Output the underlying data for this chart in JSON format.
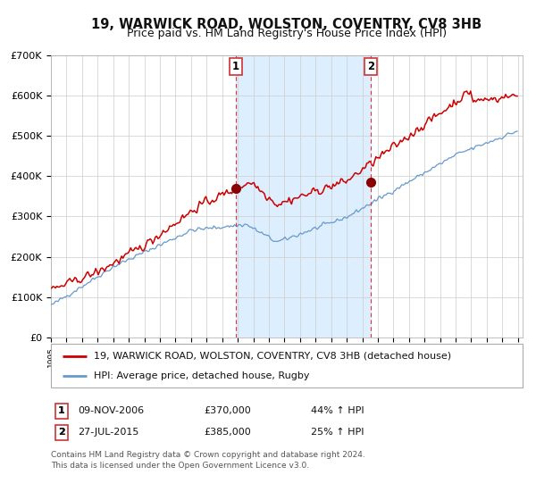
{
  "title": "19, WARWICK ROAD, WOLSTON, COVENTRY, CV8 3HB",
  "subtitle": "Price paid vs. HM Land Registry's House Price Index (HPI)",
  "legend_line1": "19, WARWICK ROAD, WOLSTON, COVENTRY, CV8 3HB (detached house)",
  "legend_line2": "HPI: Average price, detached house, Rugby",
  "transaction1_date": "09-NOV-2006",
  "transaction1_price": 370000,
  "transaction1_label": "44% ↑ HPI",
  "transaction2_date": "27-JUL-2015",
  "transaction2_price": 385000,
  "transaction2_label": "25% ↑ HPI",
  "footer1": "Contains HM Land Registry data © Crown copyright and database right 2024.",
  "footer2": "This data is licensed under the Open Government Licence v3.0.",
  "ylim_min": 0,
  "ylim_max": 700000,
  "yticks": [
    0,
    100000,
    200000,
    300000,
    400000,
    500000,
    600000,
    700000
  ],
  "red_line_color": "#cc0000",
  "blue_line_color": "#6699cc",
  "shade_color": "#ddeeff",
  "vline_color": "#dd3333",
  "marker_color": "#880000",
  "grid_color": "#cccccc",
  "bg_color": "#ffffff",
  "transaction1_x": 2006.86,
  "transaction2_x": 2015.57
}
